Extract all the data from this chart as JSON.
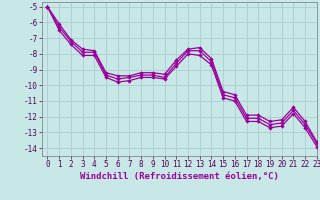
{
  "title": "",
  "xlabel": "Windchill (Refroidissement éolien,°C)",
  "xlim": [
    -0.5,
    23
  ],
  "ylim": [
    -14.5,
    -4.7
  ],
  "yticks": [
    -14,
    -13,
    -12,
    -11,
    -10,
    -9,
    -8,
    -7,
    -6,
    -5
  ],
  "xticks": [
    0,
    1,
    2,
    3,
    4,
    5,
    6,
    7,
    8,
    9,
    10,
    11,
    12,
    13,
    14,
    15,
    16,
    17,
    18,
    19,
    20,
    21,
    22,
    23
  ],
  "line_color": "#990099",
  "bg_color": "#c8e8e8",
  "grid_color": "#aacccc",
  "x_main": [
    0,
    1,
    2,
    3,
    4,
    5,
    6,
    7,
    8,
    9,
    10,
    11,
    12,
    13,
    14,
    15,
    16,
    17,
    18,
    19,
    20,
    21,
    22,
    23
  ],
  "y_main": [
    -5.0,
    -6.3,
    -7.2,
    -7.9,
    -7.9,
    -9.35,
    -9.6,
    -9.5,
    -9.35,
    -9.35,
    -9.5,
    -8.6,
    -7.8,
    -7.8,
    -8.5,
    -10.6,
    -10.8,
    -12.1,
    -12.1,
    -12.5,
    -12.4,
    -11.6,
    -12.5,
    -13.7
  ],
  "x_upper": [
    0,
    1,
    2,
    3,
    4,
    5,
    6,
    7,
    8,
    9,
    10,
    11,
    12,
    13,
    14,
    15,
    16,
    17,
    18,
    19,
    20,
    21,
    22,
    23
  ],
  "y_upper": [
    -5.0,
    -6.1,
    -7.1,
    -7.7,
    -7.8,
    -9.2,
    -9.4,
    -9.4,
    -9.2,
    -9.2,
    -9.3,
    -8.4,
    -7.7,
    -7.6,
    -8.3,
    -10.4,
    -10.6,
    -11.9,
    -11.9,
    -12.3,
    -12.2,
    -11.4,
    -12.3,
    -13.6
  ],
  "x_lower": [
    0,
    1,
    2,
    3,
    4,
    5,
    6,
    7,
    8,
    9,
    10,
    11,
    12,
    13,
    14,
    15,
    16,
    17,
    18,
    19,
    20,
    21,
    22,
    23
  ],
  "y_lower": [
    -5.0,
    -6.5,
    -7.4,
    -8.1,
    -8.1,
    -9.5,
    -9.8,
    -9.7,
    -9.5,
    -9.5,
    -9.6,
    -8.8,
    -8.0,
    -8.1,
    -8.7,
    -10.8,
    -11.0,
    -12.3,
    -12.3,
    -12.7,
    -12.6,
    -11.8,
    -12.7,
    -13.9
  ]
}
